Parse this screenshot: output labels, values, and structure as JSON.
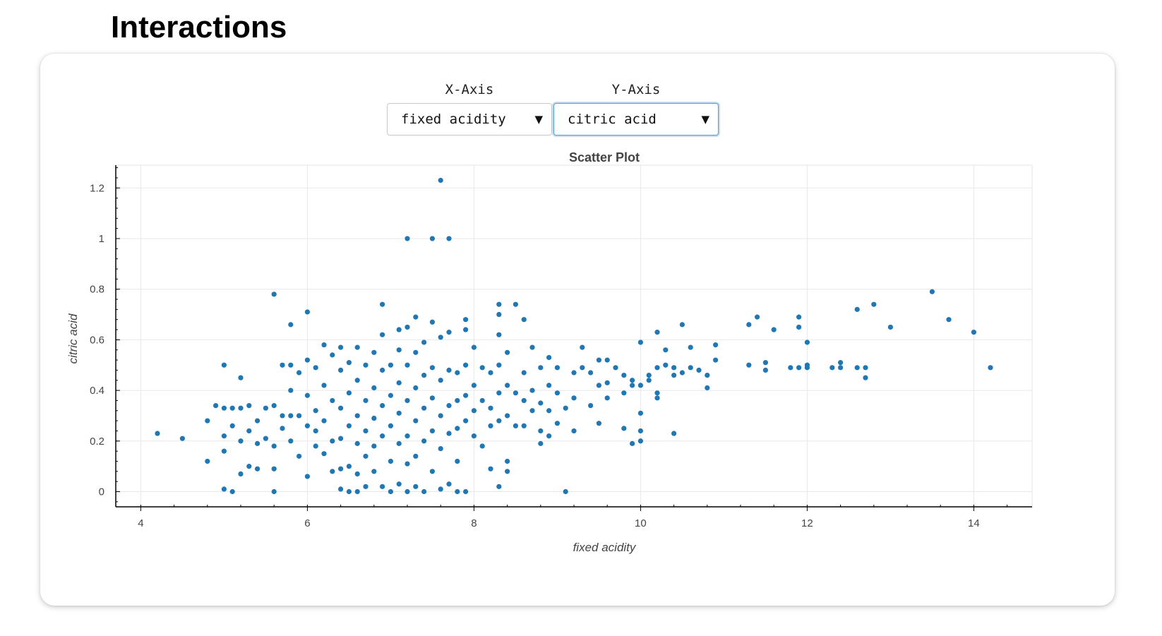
{
  "page": {
    "title": "Interactions"
  },
  "controls": {
    "x_axis": {
      "label": "X-Axis",
      "value": "fixed acidity"
    },
    "y_axis": {
      "label": "Y-Axis",
      "value": "citric acid"
    },
    "caret_icon": "triangle-down"
  },
  "colors": {
    "points": "#1f77b4",
    "focus": "#5b9bd5"
  },
  "chart_data": {
    "type": "scatter",
    "title": "Scatter Plot",
    "xlabel": "fixed acidity",
    "ylabel": "citric acid",
    "xlim": [
      3.7,
      14.7
    ],
    "ylim": [
      -0.06,
      1.29
    ],
    "x_ticks": [
      4,
      6,
      8,
      10,
      12,
      14
    ],
    "y_ticks": [
      0,
      0.2,
      0.4,
      0.6,
      0.8,
      1,
      1.2
    ],
    "x_tick_labels": [
      "4",
      "6",
      "8",
      "10",
      "12",
      "14"
    ],
    "y_tick_labels": [
      "0",
      "0.2",
      "0.4",
      "0.6",
      "0.8",
      "1",
      "1.2"
    ],
    "grid": true,
    "series": [
      {
        "color": "#1f77b4",
        "points": [
          [
            4.2,
            0.23
          ],
          [
            4.5,
            0.21
          ],
          [
            4.8,
            0.28
          ],
          [
            4.8,
            0.12
          ],
          [
            4.9,
            0.34
          ],
          [
            5.0,
            0.5
          ],
          [
            5.0,
            0.33
          ],
          [
            5.0,
            0.22
          ],
          [
            5.0,
            0.16
          ],
          [
            5.0,
            0.01
          ],
          [
            5.1,
            0.33
          ],
          [
            5.1,
            0.26
          ],
          [
            5.1,
            0.0
          ],
          [
            5.2,
            0.45
          ],
          [
            5.2,
            0.33
          ],
          [
            5.2,
            0.2
          ],
          [
            5.2,
            0.07
          ],
          [
            5.3,
            0.34
          ],
          [
            5.3,
            0.24
          ],
          [
            5.3,
            0.1
          ],
          [
            5.4,
            0.28
          ],
          [
            5.4,
            0.19
          ],
          [
            5.4,
            0.09
          ],
          [
            5.5,
            0.33
          ],
          [
            5.5,
            0.21
          ],
          [
            5.6,
            0.78
          ],
          [
            5.6,
            0.34
          ],
          [
            5.6,
            0.18
          ],
          [
            5.6,
            0.09
          ],
          [
            5.6,
            0.0
          ],
          [
            5.7,
            0.5
          ],
          [
            5.7,
            0.3
          ],
          [
            5.7,
            0.25
          ],
          [
            5.8,
            0.66
          ],
          [
            5.8,
            0.5
          ],
          [
            5.8,
            0.4
          ],
          [
            5.8,
            0.3
          ],
          [
            5.8,
            0.2
          ],
          [
            5.9,
            0.47
          ],
          [
            5.9,
            0.3
          ],
          [
            5.9,
            0.14
          ],
          [
            6.0,
            0.71
          ],
          [
            6.0,
            0.52
          ],
          [
            6.0,
            0.38
          ],
          [
            6.0,
            0.26
          ],
          [
            6.0,
            0.06
          ],
          [
            6.1,
            0.49
          ],
          [
            6.1,
            0.32
          ],
          [
            6.1,
            0.24
          ],
          [
            6.1,
            0.18
          ],
          [
            6.2,
            0.58
          ],
          [
            6.2,
            0.42
          ],
          [
            6.2,
            0.28
          ],
          [
            6.2,
            0.15
          ],
          [
            6.3,
            0.54
          ],
          [
            6.3,
            0.36
          ],
          [
            6.3,
            0.2
          ],
          [
            6.3,
            0.08
          ],
          [
            6.4,
            0.57
          ],
          [
            6.4,
            0.48
          ],
          [
            6.4,
            0.33
          ],
          [
            6.4,
            0.21
          ],
          [
            6.4,
            0.09
          ],
          [
            6.4,
            0.01
          ],
          [
            6.5,
            0.51
          ],
          [
            6.5,
            0.39
          ],
          [
            6.5,
            0.26
          ],
          [
            6.5,
            0.1
          ],
          [
            6.5,
            0.0
          ],
          [
            6.6,
            0.57
          ],
          [
            6.6,
            0.44
          ],
          [
            6.6,
            0.3
          ],
          [
            6.6,
            0.19
          ],
          [
            6.6,
            0.07
          ],
          [
            6.6,
            0.0
          ],
          [
            6.7,
            0.5
          ],
          [
            6.7,
            0.36
          ],
          [
            6.7,
            0.24
          ],
          [
            6.7,
            0.14
          ],
          [
            6.7,
            0.02
          ],
          [
            6.8,
            0.55
          ],
          [
            6.8,
            0.41
          ],
          [
            6.8,
            0.29
          ],
          [
            6.8,
            0.18
          ],
          [
            6.8,
            0.08
          ],
          [
            6.9,
            0.74
          ],
          [
            6.9,
            0.62
          ],
          [
            6.9,
            0.48
          ],
          [
            6.9,
            0.34
          ],
          [
            6.9,
            0.22
          ],
          [
            6.9,
            0.02
          ],
          [
            7.0,
            0.5
          ],
          [
            7.0,
            0.38
          ],
          [
            7.0,
            0.26
          ],
          [
            7.0,
            0.12
          ],
          [
            7.0,
            0.0
          ],
          [
            7.1,
            0.64
          ],
          [
            7.1,
            0.56
          ],
          [
            7.1,
            0.43
          ],
          [
            7.1,
            0.31
          ],
          [
            7.1,
            0.19
          ],
          [
            7.1,
            0.03
          ],
          [
            7.2,
            1.0
          ],
          [
            7.2,
            0.65
          ],
          [
            7.2,
            0.5
          ],
          [
            7.2,
            0.36
          ],
          [
            7.2,
            0.22
          ],
          [
            7.2,
            0.11
          ],
          [
            7.2,
            0.0
          ],
          [
            7.3,
            0.69
          ],
          [
            7.3,
            0.55
          ],
          [
            7.3,
            0.41
          ],
          [
            7.3,
            0.28
          ],
          [
            7.3,
            0.14
          ],
          [
            7.3,
            0.02
          ],
          [
            7.4,
            0.59
          ],
          [
            7.4,
            0.46
          ],
          [
            7.4,
            0.33
          ],
          [
            7.4,
            0.2
          ],
          [
            7.4,
            0.0
          ],
          [
            7.5,
            1.0
          ],
          [
            7.5,
            0.67
          ],
          [
            7.5,
            0.49
          ],
          [
            7.5,
            0.37
          ],
          [
            7.5,
            0.24
          ],
          [
            7.5,
            0.08
          ],
          [
            7.6,
            1.23
          ],
          [
            7.6,
            0.61
          ],
          [
            7.6,
            0.44
          ],
          [
            7.6,
            0.3
          ],
          [
            7.6,
            0.17
          ],
          [
            7.6,
            0.01
          ],
          [
            7.7,
            1.0
          ],
          [
            7.7,
            0.63
          ],
          [
            7.7,
            0.48
          ],
          [
            7.7,
            0.34
          ],
          [
            7.7,
            0.23
          ],
          [
            7.7,
            0.03
          ],
          [
            7.8,
            0.47
          ],
          [
            7.8,
            0.36
          ],
          [
            7.8,
            0.25
          ],
          [
            7.8,
            0.12
          ],
          [
            7.8,
            0.0
          ],
          [
            7.9,
            0.68
          ],
          [
            7.9,
            0.64
          ],
          [
            7.9,
            0.5
          ],
          [
            7.9,
            0.38
          ],
          [
            7.9,
            0.28
          ],
          [
            7.9,
            0.0
          ],
          [
            8.0,
            0.57
          ],
          [
            8.0,
            0.42
          ],
          [
            8.0,
            0.32
          ],
          [
            8.0,
            0.22
          ],
          [
            8.1,
            0.49
          ],
          [
            8.1,
            0.36
          ],
          [
            8.1,
            0.18
          ],
          [
            8.2,
            0.47
          ],
          [
            8.2,
            0.33
          ],
          [
            8.2,
            0.26
          ],
          [
            8.2,
            0.09
          ],
          [
            8.3,
            0.74
          ],
          [
            8.3,
            0.7
          ],
          [
            8.3,
            0.62
          ],
          [
            8.3,
            0.5
          ],
          [
            8.3,
            0.39
          ],
          [
            8.3,
            0.28
          ],
          [
            8.3,
            0.02
          ],
          [
            8.4,
            0.55
          ],
          [
            8.4,
            0.42
          ],
          [
            8.4,
            0.3
          ],
          [
            8.4,
            0.12
          ],
          [
            8.4,
            0.08
          ],
          [
            8.5,
            0.74
          ],
          [
            8.5,
            0.39
          ],
          [
            8.5,
            0.26
          ],
          [
            8.6,
            0.68
          ],
          [
            8.6,
            0.47
          ],
          [
            8.6,
            0.36
          ],
          [
            8.6,
            0.26
          ],
          [
            8.7,
            0.57
          ],
          [
            8.7,
            0.4
          ],
          [
            8.7,
            0.32
          ],
          [
            8.8,
            0.49
          ],
          [
            8.8,
            0.35
          ],
          [
            8.8,
            0.24
          ],
          [
            8.8,
            0.19
          ],
          [
            8.9,
            0.53
          ],
          [
            8.9,
            0.42
          ],
          [
            8.9,
            0.32
          ],
          [
            8.9,
            0.22
          ],
          [
            9.0,
            0.49
          ],
          [
            9.0,
            0.39
          ],
          [
            9.0,
            0.27
          ],
          [
            9.1,
            0.0
          ],
          [
            9.1,
            0.33
          ],
          [
            9.2,
            0.47
          ],
          [
            9.2,
            0.37
          ],
          [
            9.2,
            0.24
          ],
          [
            9.3,
            0.57
          ],
          [
            9.3,
            0.49
          ],
          [
            9.4,
            0.47
          ],
          [
            9.4,
            0.34
          ],
          [
            9.5,
            0.52
          ],
          [
            9.5,
            0.42
          ],
          [
            9.5,
            0.27
          ],
          [
            9.6,
            0.52
          ],
          [
            9.6,
            0.43
          ],
          [
            9.6,
            0.37
          ],
          [
            9.7,
            0.49
          ],
          [
            9.8,
            0.46
          ],
          [
            9.8,
            0.39
          ],
          [
            9.8,
            0.25
          ],
          [
            9.9,
            0.44
          ],
          [
            9.9,
            0.42
          ],
          [
            9.9,
            0.19
          ],
          [
            10.0,
            0.59
          ],
          [
            10.0,
            0.42
          ],
          [
            10.0,
            0.31
          ],
          [
            10.0,
            0.24
          ],
          [
            10.0,
            0.2
          ],
          [
            10.1,
            0.46
          ],
          [
            10.1,
            0.44
          ],
          [
            10.2,
            0.63
          ],
          [
            10.2,
            0.49
          ],
          [
            10.2,
            0.39
          ],
          [
            10.2,
            0.37
          ],
          [
            10.3,
            0.56
          ],
          [
            10.3,
            0.5
          ],
          [
            10.4,
            0.49
          ],
          [
            10.4,
            0.46
          ],
          [
            10.4,
            0.23
          ],
          [
            10.5,
            0.66
          ],
          [
            10.5,
            0.47
          ],
          [
            10.6,
            0.57
          ],
          [
            10.6,
            0.49
          ],
          [
            10.7,
            0.48
          ],
          [
            10.8,
            0.46
          ],
          [
            10.8,
            0.41
          ],
          [
            10.9,
            0.58
          ],
          [
            10.9,
            0.52
          ],
          [
            11.3,
            0.66
          ],
          [
            11.3,
            0.5
          ],
          [
            11.4,
            0.69
          ],
          [
            11.5,
            0.51
          ],
          [
            11.5,
            0.48
          ],
          [
            11.6,
            0.64
          ],
          [
            11.8,
            0.49
          ],
          [
            11.9,
            0.69
          ],
          [
            11.9,
            0.65
          ],
          [
            11.9,
            0.49
          ],
          [
            12.0,
            0.59
          ],
          [
            12.0,
            0.5
          ],
          [
            12.0,
            0.49
          ],
          [
            12.3,
            0.49
          ],
          [
            12.4,
            0.51
          ],
          [
            12.4,
            0.49
          ],
          [
            12.6,
            0.72
          ],
          [
            12.6,
            0.49
          ],
          [
            12.7,
            0.49
          ],
          [
            12.7,
            0.45
          ],
          [
            12.8,
            0.74
          ],
          [
            13.0,
            0.65
          ],
          [
            13.5,
            0.79
          ],
          [
            13.7,
            0.68
          ],
          [
            14.0,
            0.63
          ],
          [
            14.2,
            0.49
          ]
        ]
      }
    ]
  }
}
